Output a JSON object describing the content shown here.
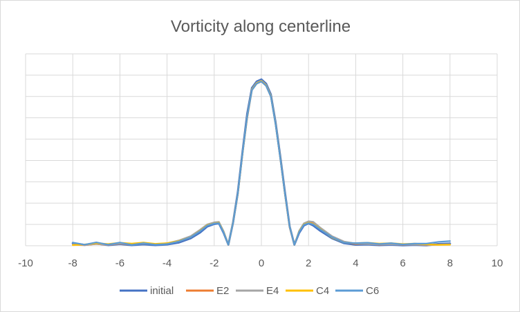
{
  "chart_data": {
    "type": "line",
    "title": "Vorticity along centerline",
    "xlabel": "",
    "ylabel": "",
    "xlim": [
      -10,
      10
    ],
    "x_ticks": [
      -10,
      -8,
      -6,
      -4,
      -2,
      0,
      2,
      4,
      6,
      8,
      10
    ],
    "x_tick_labels": [
      "-10",
      "-8",
      "-6",
      "-4",
      "-2",
      "0",
      "2",
      "4",
      "6",
      "8",
      "10"
    ],
    "ylim": [
      0,
      9
    ],
    "y_grid_count": 9,
    "y_tick_labels_shown": false,
    "grid": true,
    "legend_position": "bottom",
    "series": [
      {
        "name": "initial",
        "color": "#4472c4",
        "x": [
          -8,
          -7.5,
          -7,
          -6.5,
          -6,
          -5.5,
          -5,
          -4.5,
          -4,
          -3.5,
          -3,
          -2.6,
          -2.3,
          -2,
          -1.8,
          -1.6,
          -1.4,
          -1.2,
          -1,
          -0.8,
          -0.6,
          -0.4,
          -0.2,
          0,
          0.2,
          0.4,
          0.6,
          0.8,
          1,
          1.2,
          1.4,
          1.6,
          1.8,
          2,
          2.2,
          2.5,
          3,
          3.5,
          4,
          4.5,
          5,
          5.5,
          6,
          6.5,
          7,
          7.5,
          8
        ],
        "y": [
          0.12,
          0.04,
          0.1,
          0.03,
          0.08,
          0.03,
          0.07,
          0.03,
          0.06,
          0.15,
          0.35,
          0.62,
          0.9,
          1.02,
          1.05,
          0.6,
          0.05,
          1.1,
          2.5,
          4.4,
          6.2,
          7.4,
          7.7,
          7.8,
          7.6,
          7.1,
          5.8,
          4.2,
          2.5,
          0.9,
          0.05,
          0.6,
          0.95,
          1.05,
          0.95,
          0.7,
          0.35,
          0.12,
          0.05,
          0.06,
          0.03,
          0.05,
          0.02,
          0.04,
          0.02,
          0.08,
          0.1
        ]
      },
      {
        "name": "E2",
        "color": "#ed7d31",
        "x": [
          -8,
          -7.5,
          -7,
          -6.5,
          -6,
          -5.5,
          -5,
          -4.5,
          -4,
          -3.5,
          -3,
          -2.6,
          -2.3,
          -2,
          -1.8,
          -1.6,
          -1.4,
          -1.2,
          -1,
          -0.8,
          -0.6,
          -0.4,
          -0.2,
          0,
          0.2,
          0.4,
          0.6,
          0.8,
          1,
          1.2,
          1.4,
          1.6,
          1.8,
          2,
          2.2,
          2.5,
          3,
          3.5,
          4,
          4.5,
          5,
          5.5,
          6,
          6.5,
          7,
          7.5,
          8
        ],
        "y": [
          0.05,
          0.03,
          0.08,
          0.04,
          0.1,
          0.05,
          0.12,
          0.06,
          0.1,
          0.2,
          0.4,
          0.7,
          0.95,
          1.08,
          1.1,
          0.65,
          0.05,
          1.05,
          2.4,
          4.3,
          6.0,
          7.3,
          7.6,
          7.7,
          7.5,
          7.0,
          5.7,
          4.1,
          2.4,
          0.85,
          0.05,
          0.65,
          1.0,
          1.1,
          1.05,
          0.8,
          0.42,
          0.18,
          0.08,
          0.1,
          0.05,
          0.08,
          0.04,
          0.06,
          0.03,
          0.05,
          0.06
        ]
      },
      {
        "name": "E4",
        "color": "#a5a5a5",
        "x": [
          -8,
          -7.5,
          -7,
          -6.5,
          -6,
          -5.5,
          -5,
          -4.5,
          -4,
          -3.5,
          -3,
          -2.6,
          -2.3,
          -2,
          -1.8,
          -1.6,
          -1.4,
          -1.2,
          -1,
          -0.8,
          -0.6,
          -0.4,
          -0.2,
          0,
          0.2,
          0.4,
          0.6,
          0.8,
          1,
          1.2,
          1.4,
          1.6,
          1.8,
          2,
          2.2,
          2.5,
          3,
          3.5,
          4,
          4.5,
          5,
          5.5,
          6,
          6.5,
          7,
          7.5,
          8
        ],
        "y": [
          0.06,
          0.04,
          0.09,
          0.05,
          0.11,
          0.06,
          0.1,
          0.07,
          0.12,
          0.25,
          0.45,
          0.75,
          1.0,
          1.1,
          1.12,
          0.68,
          0.05,
          1.1,
          2.45,
          4.35,
          6.1,
          7.35,
          7.65,
          7.75,
          7.55,
          7.05,
          5.75,
          4.15,
          2.45,
          0.9,
          0.05,
          0.7,
          1.05,
          1.15,
          1.12,
          0.85,
          0.45,
          0.2,
          0.1,
          0.08,
          0.06,
          0.07,
          0.05,
          0.06,
          0.04,
          0.05,
          0.07
        ]
      },
      {
        "name": "C4",
        "color": "#ffc000",
        "x": [
          -8,
          -7.5,
          -7,
          -6.5,
          -6,
          -5.5,
          -5,
          -4.5,
          -4,
          -3.5,
          -3,
          -2.6,
          -2.3,
          -2,
          -1.8,
          -1.6,
          -1.4,
          -1.2,
          -1,
          -0.8,
          -0.6,
          -0.4,
          -0.2,
          0,
          0.2,
          0.4,
          0.6,
          0.8,
          1,
          1.2,
          1.4,
          1.6,
          1.8,
          2,
          2.2,
          2.5,
          3,
          3.5,
          4,
          4.5,
          5,
          5.5,
          6,
          6.5,
          7,
          7.5,
          8
        ],
        "y": [
          0.03,
          0.06,
          0.12,
          0.08,
          0.14,
          0.1,
          0.15,
          0.09,
          0.12,
          0.22,
          0.4,
          0.7,
          0.96,
          1.05,
          1.08,
          0.63,
          0.05,
          1.08,
          2.42,
          4.32,
          6.05,
          7.32,
          7.62,
          7.72,
          7.52,
          7.02,
          5.72,
          4.12,
          2.42,
          0.88,
          0.05,
          0.66,
          1.0,
          1.08,
          1.02,
          0.78,
          0.38,
          0.15,
          0.12,
          0.14,
          0.1,
          0.12,
          0.08,
          0.1,
          0.07,
          0.04,
          0.05
        ]
      },
      {
        "name": "C6",
        "color": "#5b9bd5",
        "x": [
          -8,
          -7.5,
          -7,
          -6.5,
          -6,
          -5.5,
          -5,
          -4.5,
          -4,
          -3.5,
          -3,
          -2.6,
          -2.3,
          -2,
          -1.8,
          -1.6,
          -1.4,
          -1.2,
          -1,
          -0.8,
          -0.6,
          -0.4,
          -0.2,
          0,
          0.2,
          0.4,
          0.6,
          0.8,
          1,
          1.2,
          1.4,
          1.6,
          1.8,
          2,
          2.2,
          2.5,
          3,
          3.5,
          4,
          4.5,
          5,
          5.5,
          6,
          6.5,
          7,
          7.5,
          8
        ],
        "y": [
          0.15,
          0.05,
          0.16,
          0.05,
          0.15,
          0.04,
          0.12,
          0.05,
          0.08,
          0.2,
          0.4,
          0.68,
          0.94,
          1.04,
          1.06,
          0.62,
          0.05,
          1.06,
          2.42,
          4.32,
          6.05,
          7.3,
          7.6,
          7.7,
          7.5,
          7.0,
          5.7,
          4.1,
          2.42,
          0.88,
          0.05,
          0.64,
          0.98,
          1.06,
          1.0,
          0.76,
          0.4,
          0.15,
          0.12,
          0.14,
          0.08,
          0.12,
          0.06,
          0.1,
          0.1,
          0.18,
          0.22
        ]
      }
    ]
  }
}
